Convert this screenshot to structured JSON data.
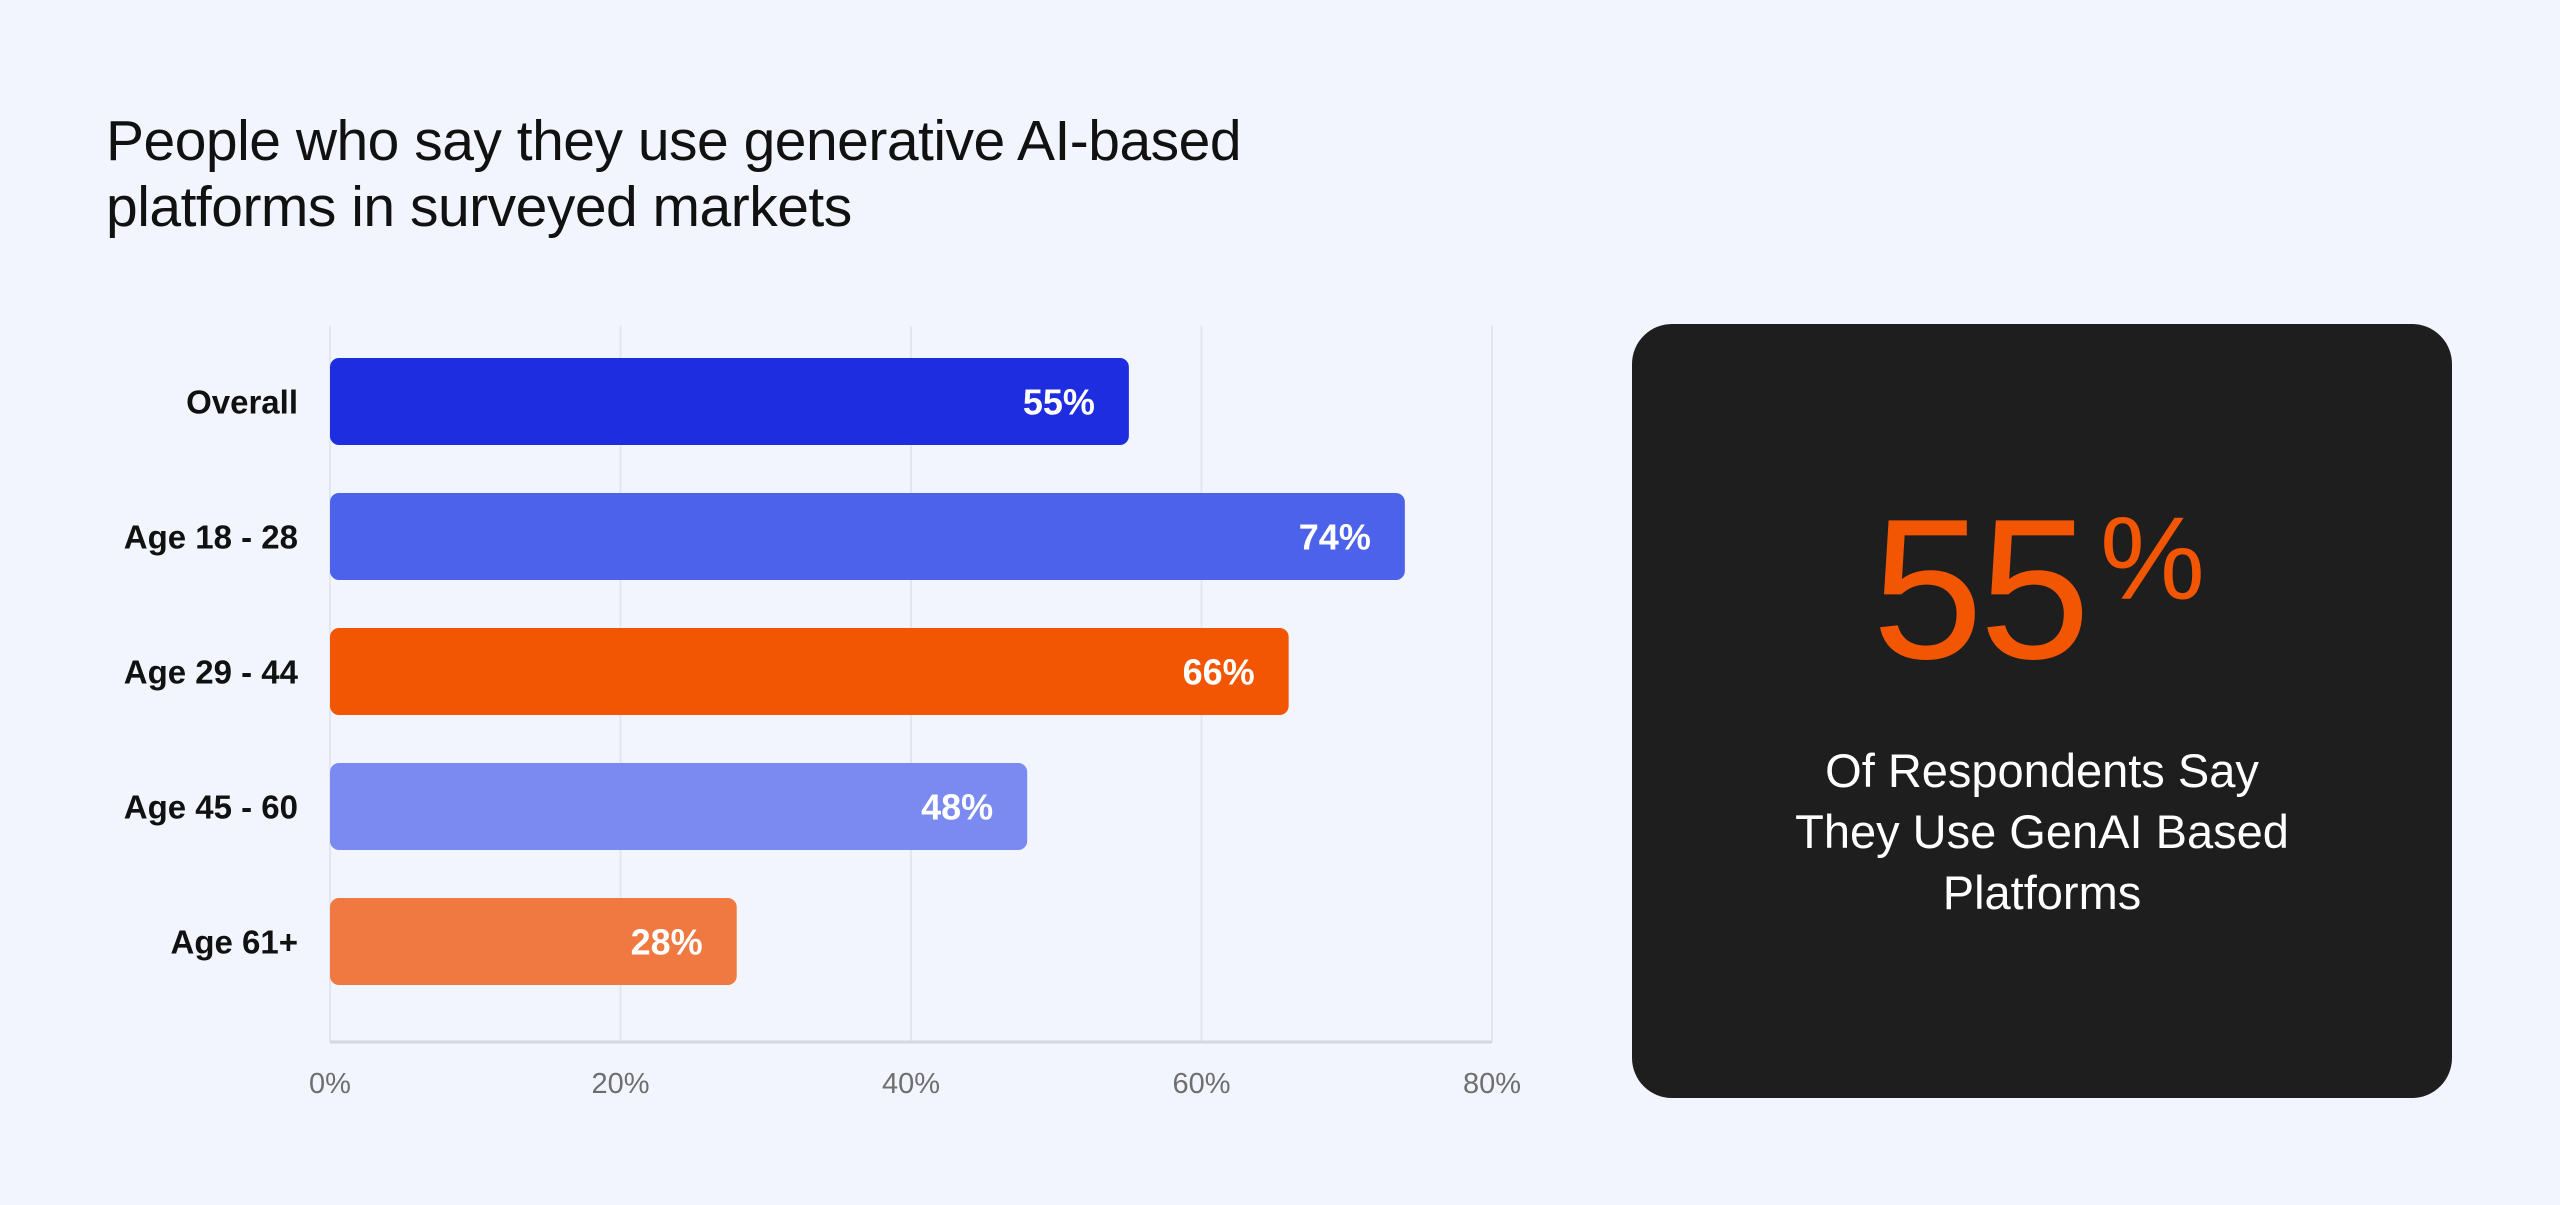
{
  "title_lines": [
    "People who say they use generative AI-based",
    "platforms in surveyed markets"
  ],
  "colors": {
    "background": "#f2f5fe",
    "card_background": "#1e1e1e",
    "accent_orange": "#f25602",
    "grid": "#e3e6ef",
    "axis": "#d4d7df",
    "tick_text": "#6f6f6f",
    "category_text": "#111111",
    "bar_label_text": "#ffffff"
  },
  "chart_data": {
    "type": "bar",
    "orientation": "horizontal",
    "title": "People who say they use generative AI-based platforms in surveyed markets",
    "xlabel": "",
    "ylabel": "",
    "categories": [
      "Overall",
      "Age 18 - 28",
      "Age 29 - 44",
      "Age 45 - 60",
      "Age 61+"
    ],
    "values": [
      55,
      74,
      66,
      48,
      28
    ],
    "data_labels": [
      "55%",
      "74%",
      "66%",
      "48%",
      "28%"
    ],
    "bar_colors": [
      "#1f2de0",
      "#4d62ea",
      "#f25602",
      "#7b8af1",
      "#f07941"
    ],
    "xlim": [
      0,
      80
    ],
    "x_ticks": [
      0,
      20,
      40,
      60,
      80
    ],
    "x_tick_labels": [
      "0%",
      "20%",
      "40%",
      "60%",
      "80%"
    ],
    "grid": true,
    "legend": "none"
  },
  "stat": {
    "number": "55",
    "percent_sign": "%",
    "caption_lines": [
      "Of Respondents Say",
      "They Use GenAI Based",
      "Platforms"
    ]
  }
}
